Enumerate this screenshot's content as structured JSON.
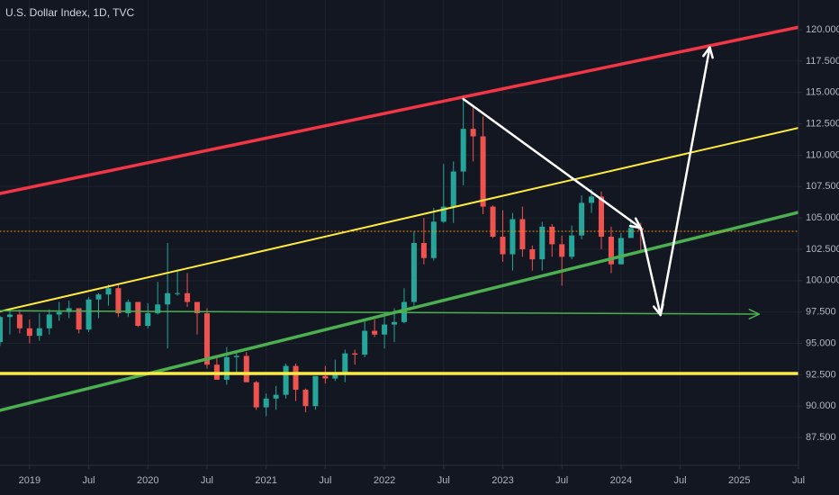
{
  "chart_data": {
    "type": "candlestick",
    "title": "U.S. Dollar Index, 1D, TVC",
    "x": [
      "2018-10",
      "2018-11",
      "2018-12",
      "2019-01",
      "2019-02",
      "2019-03",
      "2019-04",
      "2019-05",
      "2019-06",
      "2019-07",
      "2019-08",
      "2019-09",
      "2019-10",
      "2019-11",
      "2019-12",
      "2020-01",
      "2020-02",
      "2020-03",
      "2020-04",
      "2020-05",
      "2020-06",
      "2020-07",
      "2020-08",
      "2020-09",
      "2020-10",
      "2020-11",
      "2020-12",
      "2021-01",
      "2021-02",
      "2021-03",
      "2021-04",
      "2021-05",
      "2021-06",
      "2021-07",
      "2021-08",
      "2021-09",
      "2021-10",
      "2021-11",
      "2021-12",
      "2022-01",
      "2022-02",
      "2022-03",
      "2022-04",
      "2022-05",
      "2022-06",
      "2022-07",
      "2022-08",
      "2022-09",
      "2022-10",
      "2022-11",
      "2022-12",
      "2023-01",
      "2023-02",
      "2023-03",
      "2023-04",
      "2023-05",
      "2023-06",
      "2023-07",
      "2023-08",
      "2023-09",
      "2023-10",
      "2023-11",
      "2023-12",
      "2024-01",
      "2024-02",
      "2024-03"
    ],
    "open": [
      95.1,
      97.1,
      97.3,
      96.2,
      95.6,
      96.2,
      97.3,
      97.5,
      97.8,
      96.1,
      98.5,
      98.9,
      99.4,
      97.4,
      98.3,
      96.4,
      97.4,
      98.1,
      99.0,
      99.0,
      98.3,
      97.4,
      93.3,
      92.1,
      93.9,
      94.0,
      91.9,
      89.9,
      90.6,
      90.9,
      93.2,
      91.3,
      90.0,
      92.4,
      92.2,
      92.6,
      94.2,
      94.1,
      96.0,
      95.7,
      96.5,
      96.7,
      98.3,
      103.0,
      101.8,
      104.7,
      105.9,
      108.7,
      112.1,
      111.5,
      105.9,
      103.5,
      102.1,
      104.9,
      102.5,
      101.7,
      104.3,
      102.9,
      101.9,
      103.6,
      106.2,
      106.7,
      103.5,
      101.3,
      103.4,
      104.2
    ],
    "high": [
      97.2,
      97.7,
      97.7,
      96.9,
      97.4,
      97.7,
      98.3,
      98.4,
      97.8,
      98.7,
      99.0,
      99.7,
      99.7,
      98.5,
      98.3,
      98.2,
      99.9,
      103.0,
      100.9,
      100.6,
      98.3,
      97.8,
      93.9,
      94.7,
      94.3,
      94.3,
      92.0,
      91.0,
      91.6,
      93.4,
      93.4,
      91.4,
      92.4,
      93.2,
      93.7,
      94.5,
      94.5,
      96.9,
      96.9,
      97.4,
      97.8,
      99.4,
      103.9,
      105.0,
      105.8,
      109.3,
      109.5,
      114.8,
      113.9,
      113.1,
      106.0,
      105.6,
      105.4,
      105.9,
      102.8,
      104.7,
      104.5,
      103.6,
      104.4,
      106.8,
      107.3,
      107.1,
      104.3,
      103.8,
      104.9,
      104.6
    ],
    "low": [
      94.8,
      95.7,
      95.8,
      95.0,
      95.2,
      95.7,
      96.8,
      97.0,
      95.8,
      95.9,
      97.0,
      98.0,
      97.1,
      97.1,
      96.3,
      96.2,
      97.3,
      94.6,
      98.8,
      97.9,
      95.7,
      93.0,
      92.1,
      91.7,
      92.5,
      91.9,
      89.7,
      89.2,
      89.7,
      90.6,
      90.4,
      89.5,
      89.7,
      91.8,
      92.0,
      91.9,
      93.3,
      93.9,
      95.5,
      94.6,
      95.1,
      96.6,
      98.0,
      101.3,
      101.6,
      104.6,
      104.6,
      107.6,
      109.5,
      105.3,
      103.4,
      101.5,
      100.8,
      101.9,
      100.8,
      100.8,
      101.9,
      99.6,
      101.7,
      103.3,
      105.4,
      102.5,
      100.6,
      101.3,
      103.4,
      102.3
    ],
    "close": [
      97.1,
      97.3,
      96.2,
      95.6,
      96.2,
      97.3,
      97.5,
      97.8,
      96.1,
      98.5,
      98.9,
      99.4,
      97.4,
      98.3,
      96.4,
      97.4,
      98.1,
      99.0,
      99.0,
      98.3,
      97.4,
      93.3,
      92.1,
      93.9,
      94.0,
      91.9,
      89.9,
      90.6,
      90.9,
      93.2,
      91.3,
      90.0,
      92.4,
      92.2,
      92.6,
      94.2,
      94.1,
      96.0,
      95.7,
      96.5,
      96.7,
      98.3,
      103.0,
      101.8,
      104.7,
      105.9,
      108.7,
      112.1,
      111.5,
      105.9,
      103.5,
      102.1,
      104.9,
      102.5,
      101.7,
      104.3,
      102.9,
      101.9,
      103.6,
      106.2,
      106.7,
      103.5,
      101.3,
      103.4,
      104.2,
      104.0
    ],
    "up_color": "#26a69a",
    "down_color": "#ef5350",
    "xlim": [
      "2018-10",
      "2025-07"
    ],
    "xticks": [
      {
        "value": "2019-01",
        "label": "2019"
      },
      {
        "value": "2019-07",
        "label": "Jul"
      },
      {
        "value": "2020-01",
        "label": "2020"
      },
      {
        "value": "2020-07",
        "label": "Jul"
      },
      {
        "value": "2021-01",
        "label": "2021"
      },
      {
        "value": "2021-07",
        "label": "Jul"
      },
      {
        "value": "2022-01",
        "label": "2022"
      },
      {
        "value": "2022-07",
        "label": "Jul"
      },
      {
        "value": "2023-01",
        "label": "2023"
      },
      {
        "value": "2023-07",
        "label": "Jul"
      },
      {
        "value": "2024-01",
        "label": "2024"
      },
      {
        "value": "2024-07",
        "label": "Jul"
      },
      {
        "value": "2025-01",
        "label": "2025"
      },
      {
        "value": "2025-07",
        "label": "Jul"
      }
    ],
    "ylim": [
      85.28,
      122.37
    ],
    "yticks": [
      {
        "value": 87.5,
        "label": "87.500"
      },
      {
        "value": 90,
        "label": "90.000"
      },
      {
        "value": 92.5,
        "label": "92.500"
      },
      {
        "value": 95,
        "label": "95.000"
      },
      {
        "value": 97.5,
        "label": "97.500"
      },
      {
        "value": 100,
        "label": "100.000"
      },
      {
        "value": 102.5,
        "label": "102.500"
      },
      {
        "value": 105,
        "label": "105.000"
      },
      {
        "value": 107.5,
        "label": "107.500"
      },
      {
        "value": 110,
        "label": "110.000"
      },
      {
        "value": 112.5,
        "label": "112.500"
      },
      {
        "value": 115,
        "label": "115.000"
      },
      {
        "value": 117.5,
        "label": "117.500"
      },
      {
        "value": 120,
        "label": "120.000"
      }
    ],
    "grid": true,
    "drawings": [
      {
        "from": {
          "x": "2018-10",
          "y": 106.94
        },
        "to": {
          "x": "2025-07",
          "y": 120.2
        },
        "color": "#f23645",
        "width": 3.5,
        "style": "solid",
        "arrow": false
      },
      {
        "from": {
          "x": "2018-10",
          "y": 97.55
        },
        "to": {
          "x": "2025-07",
          "y": 112.18
        },
        "color": "#ffeb3b",
        "width": 2,
        "style": "solid",
        "arrow": false
      },
      {
        "from": {
          "x": "2018-10",
          "y": 89.66
        },
        "to": {
          "x": "2025-07",
          "y": 105.44
        },
        "color": "#4caf50",
        "width": 3.5,
        "style": "solid",
        "arrow": false
      },
      {
        "from": {
          "x": "2018-10",
          "y": 92.6
        },
        "to": {
          "x": "2025-07",
          "y": 92.6
        },
        "color": "#ffeb3b",
        "width": 3.5,
        "style": "solid",
        "arrow": false
      },
      {
        "from": {
          "x": "2018-10",
          "y": 97.6
        },
        "to": {
          "x": "2025-03",
          "y": 97.33
        },
        "color": "#4caf50",
        "width": 1.5,
        "style": "solid",
        "arrow": true
      },
      {
        "from": {
          "x": "2018-10",
          "y": 103.93
        },
        "to": {
          "x": "2025-07",
          "y": 103.93
        },
        "color": "#ff9800",
        "width": 1,
        "style": "dotted",
        "arrow": false
      },
      {
        "from": {
          "x": "2022-09",
          "y": 114.48
        },
        "to": {
          "x": "2024-03",
          "y": 104.2
        },
        "color": "#ffffff",
        "width": 2.5,
        "style": "solid",
        "arrow": true
      },
      {
        "from": {
          "x": "2024-03",
          "y": 104.2
        },
        "to": {
          "x": "2024-05",
          "y": 97.26
        },
        "color": "#ffffff",
        "width": 2.5,
        "style": "solid",
        "arrow": true
      },
      {
        "from": {
          "x": "2024-05",
          "y": 97.26
        },
        "to": {
          "x": "2024-10",
          "y": 118.6
        },
        "color": "#ffffff",
        "width": 2.5,
        "style": "solid",
        "arrow": true
      }
    ]
  }
}
